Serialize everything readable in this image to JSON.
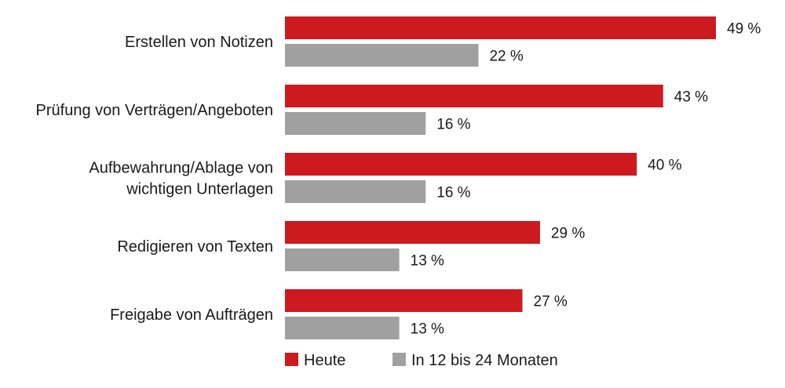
{
  "chart_data": {
    "type": "bar",
    "orientation": "horizontal",
    "categories": [
      [
        "Erstellen von Notizen"
      ],
      [
        "Prüfung von Verträgen/Angeboten"
      ],
      [
        "Aufbewahrung/Ablage von",
        "wichtigen Unterlagen"
      ],
      [
        "Redigieren von Texten"
      ],
      [
        "Freigabe von Aufträgen"
      ]
    ],
    "series": [
      {
        "name": "Heute",
        "color": "#cc1a1f",
        "values": [
          49,
          43,
          40,
          29,
          27
        ],
        "labels": [
          "49 %",
          "43 %",
          "40 %",
          "29 %",
          "27 %"
        ]
      },
      {
        "name": "In 12 bis 24 Monaten",
        "color": "#a0a0a0",
        "values": [
          22,
          16,
          16,
          13,
          13
        ],
        "labels": [
          "22 %",
          "16 %",
          "16 %",
          "13 %",
          "13 %"
        ]
      }
    ],
    "xlim": [
      0,
      49
    ],
    "grid": false,
    "legend_position": "bottom"
  }
}
